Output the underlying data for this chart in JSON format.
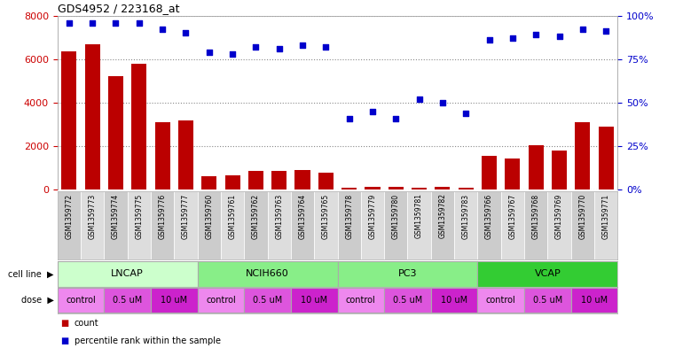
{
  "title": "GDS4952 / 223168_at",
  "samples": [
    "GSM1359772",
    "GSM1359773",
    "GSM1359774",
    "GSM1359775",
    "GSM1359776",
    "GSM1359777",
    "GSM1359760",
    "GSM1359761",
    "GSM1359762",
    "GSM1359763",
    "GSM1359764",
    "GSM1359765",
    "GSM1359778",
    "GSM1359779",
    "GSM1359780",
    "GSM1359781",
    "GSM1359782",
    "GSM1359783",
    "GSM1359766",
    "GSM1359767",
    "GSM1359768",
    "GSM1359769",
    "GSM1359770",
    "GSM1359771"
  ],
  "counts": [
    6350,
    6700,
    5200,
    5800,
    3100,
    3200,
    600,
    650,
    850,
    850,
    900,
    800,
    100,
    150,
    130,
    100,
    130,
    100,
    1550,
    1450,
    2050,
    1800,
    3100,
    2900
  ],
  "percentile_ranks": [
    96,
    96,
    96,
    96,
    92,
    90,
    79,
    78,
    82,
    81,
    83,
    82,
    41,
    45,
    41,
    52,
    50,
    44,
    86,
    87,
    89,
    88,
    92,
    91
  ],
  "cell_lines": [
    {
      "label": "LNCAP",
      "start": 0,
      "end": 6,
      "color": "#ccffcc"
    },
    {
      "label": "NCIH660",
      "start": 6,
      "end": 12,
      "color": "#88ee88"
    },
    {
      "label": "PC3",
      "start": 12,
      "end": 18,
      "color": "#88ee88"
    },
    {
      "label": "VCAP",
      "start": 18,
      "end": 24,
      "color": "#33cc33"
    }
  ],
  "doses": [
    {
      "label": "control",
      "start": 0,
      "end": 2
    },
    {
      "label": "0.5 uM",
      "start": 2,
      "end": 4
    },
    {
      "label": "10 uM",
      "start": 4,
      "end": 6
    },
    {
      "label": "control",
      "start": 6,
      "end": 8
    },
    {
      "label": "0.5 uM",
      "start": 8,
      "end": 10
    },
    {
      "label": "10 uM",
      "start": 10,
      "end": 12
    },
    {
      "label": "control",
      "start": 12,
      "end": 14
    },
    {
      "label": "0.5 uM",
      "start": 14,
      "end": 16
    },
    {
      "label": "10 uM",
      "start": 16,
      "end": 18
    },
    {
      "label": "control",
      "start": 18,
      "end": 20
    },
    {
      "label": "0.5 uM",
      "start": 20,
      "end": 22
    },
    {
      "label": "10 uM",
      "start": 22,
      "end": 24
    }
  ],
  "dose_colors": {
    "control": "#ee88ee",
    "0.5 uM": "#dd55dd",
    "10 uM": "#cc22cc"
  },
  "ylim_left": [
    0,
    8000
  ],
  "ylim_right": [
    0,
    100
  ],
  "yticks_left": [
    0,
    2000,
    4000,
    6000,
    8000
  ],
  "yticks_right": [
    0,
    25,
    50,
    75,
    100
  ],
  "bar_color": "#bb0000",
  "dot_color": "#0000cc",
  "grid_color": "#888888",
  "sample_bg_color": "#dddddd",
  "outer_bg": "#e8e8e8",
  "label_color_left": "#cc0000",
  "label_color_right": "#0000cc"
}
